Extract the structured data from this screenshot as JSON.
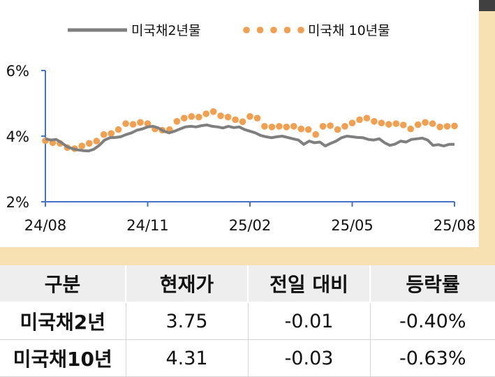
{
  "chart_data": {
    "type": "line",
    "title": "",
    "xlabel": "",
    "ylabel": "",
    "ylim": [
      2,
      6
    ],
    "yticks": [
      2,
      4,
      6
    ],
    "ytick_labels": [
      "2%",
      "4%",
      "6%"
    ],
    "x_tick_labels": [
      "24/08",
      "24/11",
      "25/02",
      "25/05",
      "25/08"
    ],
    "legend": [
      "미국채2년물",
      "미국채 10년물"
    ],
    "legend_position": "top",
    "grid": false,
    "series": [
      {
        "name": "미국채2년물",
        "style": "solid",
        "color": "#7f7f7f",
        "values": [
          3.92,
          3.88,
          3.9,
          3.8,
          3.68,
          3.62,
          3.58,
          3.56,
          3.55,
          3.6,
          3.72,
          3.88,
          3.95,
          3.96,
          3.98,
          4.05,
          4.1,
          4.18,
          4.22,
          4.28,
          4.3,
          4.25,
          4.15,
          4.1,
          4.15,
          4.22,
          4.28,
          4.3,
          4.28,
          4.32,
          4.34,
          4.3,
          4.28,
          4.25,
          4.3,
          4.26,
          4.28,
          4.2,
          4.15,
          4.1,
          4.02,
          3.98,
          3.95,
          3.98,
          4.0,
          3.96,
          3.92,
          3.88,
          3.75,
          3.85,
          3.8,
          3.82,
          3.7,
          3.78,
          3.85,
          3.95,
          4.0,
          3.98,
          3.96,
          3.95,
          3.9,
          3.88,
          3.92,
          3.8,
          3.72,
          3.76,
          3.85,
          3.82,
          3.9,
          3.92,
          3.94,
          3.88,
          3.72,
          3.74,
          3.7,
          3.75,
          3.75
        ]
      },
      {
        "name": "미국채 10년물",
        "style": "dotted",
        "color": "#f0a050",
        "values": [
          3.86,
          3.8,
          3.78,
          3.65,
          3.62,
          3.7,
          3.78,
          3.85,
          4.05,
          4.08,
          4.2,
          4.38,
          4.36,
          4.42,
          4.38,
          4.22,
          4.18,
          4.2,
          4.45,
          4.55,
          4.6,
          4.58,
          4.68,
          4.75,
          4.62,
          4.58,
          4.5,
          4.44,
          4.6,
          4.55,
          4.3,
          4.28,
          4.3,
          4.28,
          4.3,
          4.22,
          4.2,
          4.05,
          4.3,
          4.32,
          4.2,
          4.3,
          4.4,
          4.5,
          4.55,
          4.45,
          4.4,
          4.36,
          4.38,
          4.34,
          4.22,
          4.35,
          4.42,
          4.38,
          4.28,
          4.3,
          4.31
        ]
      }
    ]
  },
  "table": {
    "headers": [
      "구분",
      "현재가",
      "전일 대비",
      "등락률"
    ],
    "rows": [
      {
        "name": "미국채2년",
        "price": "3.75",
        "change": "-0.01",
        "rate": "-0.40%"
      },
      {
        "name": "미국채10년",
        "price": "4.31",
        "change": "-0.03",
        "rate": "-0.63%"
      }
    ]
  }
}
